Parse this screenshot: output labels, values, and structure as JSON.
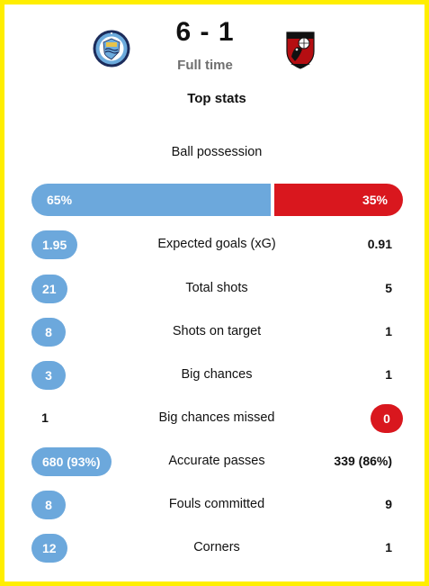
{
  "match": {
    "score": "6 - 1",
    "status": "Full time",
    "home_crest": "manchester-city-crest",
    "away_crest": "bournemouth-crest"
  },
  "section": {
    "title": "Top stats"
  },
  "possession": {
    "label": "Ball possession",
    "home": "65%",
    "away": "35%",
    "home_fraction": 0.65
  },
  "stats": [
    {
      "label": "Expected goals (xG)",
      "home": "1.95",
      "away": "0.91",
      "highlight": "home"
    },
    {
      "label": "Total shots",
      "home": "21",
      "away": "5",
      "highlight": "home"
    },
    {
      "label": "Shots on target",
      "home": "8",
      "away": "1",
      "highlight": "home"
    },
    {
      "label": "Big chances",
      "home": "3",
      "away": "1",
      "highlight": "home"
    },
    {
      "label": "Big chances missed",
      "home": "1",
      "away": "0",
      "highlight": "away"
    },
    {
      "label": "Accurate passes",
      "home": "680 (93%)",
      "away": "339 (86%)",
      "highlight": "home"
    },
    {
      "label": "Fouls committed",
      "home": "8",
      "away": "9",
      "highlight": "home"
    },
    {
      "label": "Corners",
      "home": "12",
      "away": "1",
      "highlight": "home"
    }
  ],
  "colors": {
    "home": "#6ca8dc",
    "away": "#d9171e",
    "frame": "#ffee00",
    "muted": "#6f6f6f"
  }
}
